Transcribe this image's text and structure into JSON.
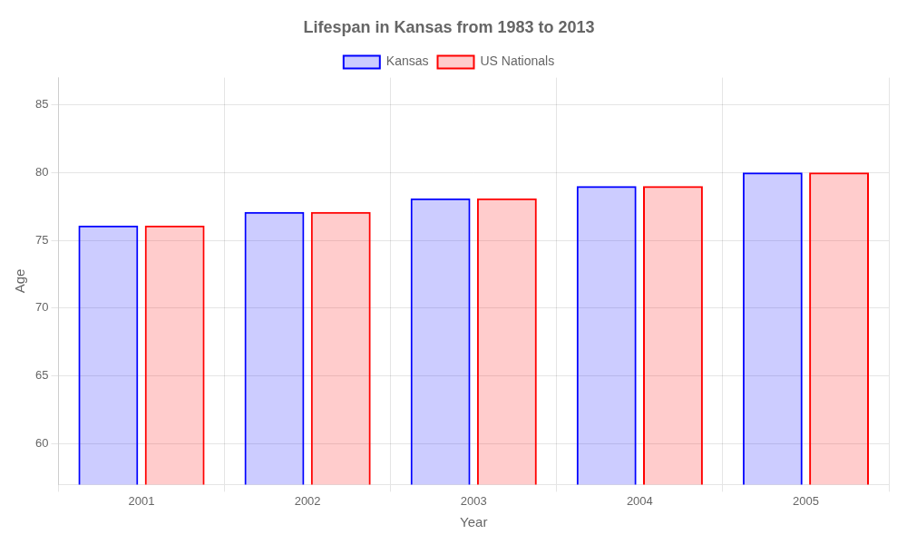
{
  "chart_data": {
    "type": "bar",
    "title": "Lifespan in Kansas from 1983 to 2013",
    "xlabel": "Year",
    "ylabel": "Age",
    "categories": [
      "2001",
      "2002",
      "2003",
      "2004",
      "2005"
    ],
    "series": [
      {
        "name": "Kansas",
        "color": "#0000ff",
        "values": [
          76.1,
          77.1,
          78.1,
          79.0,
          80.0
        ]
      },
      {
        "name": "US Nationals",
        "color": "#ff0000",
        "values": [
          76.1,
          77.1,
          78.1,
          79.0,
          80.0
        ]
      }
    ],
    "ylim": [
      57,
      87
    ],
    "yticks": [
      60,
      65,
      70,
      75,
      80,
      85
    ],
    "grid": true,
    "legend": "top"
  }
}
